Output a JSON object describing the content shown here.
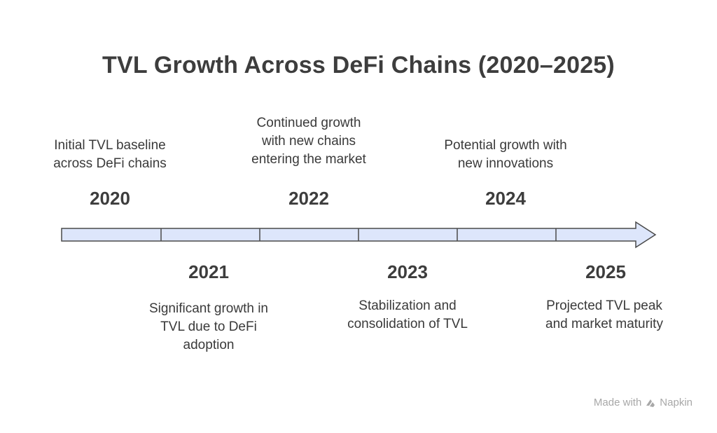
{
  "title": "TVL Growth Across DeFi Chains (2020–2025)",
  "milestones": [
    {
      "year": "2020",
      "description": "Initial TVL baseline\nacross DeFi chains"
    },
    {
      "year": "2021",
      "description": "Significant growth in\nTVL due to DeFi\nadoption"
    },
    {
      "year": "2022",
      "description": "Continued growth\nwith new chains\nentering the market"
    },
    {
      "year": "2023",
      "description": "Stabilization and\nconsolidation of TVL"
    },
    {
      "year": "2024",
      "description": "Potential growth with\nnew innovations"
    },
    {
      "year": "2025",
      "description": "Projected TVL peak\nand market maturity"
    }
  ],
  "footer": {
    "made_with": "Made with",
    "brand": "Napkin",
    "icon": "napkin-logo-icon"
  },
  "colors": {
    "arrow_fill": "#dde6fb",
    "arrow_stroke": "#4a4a4a",
    "text": "#3d3d3d",
    "footer_text": "#a8a8a8"
  }
}
